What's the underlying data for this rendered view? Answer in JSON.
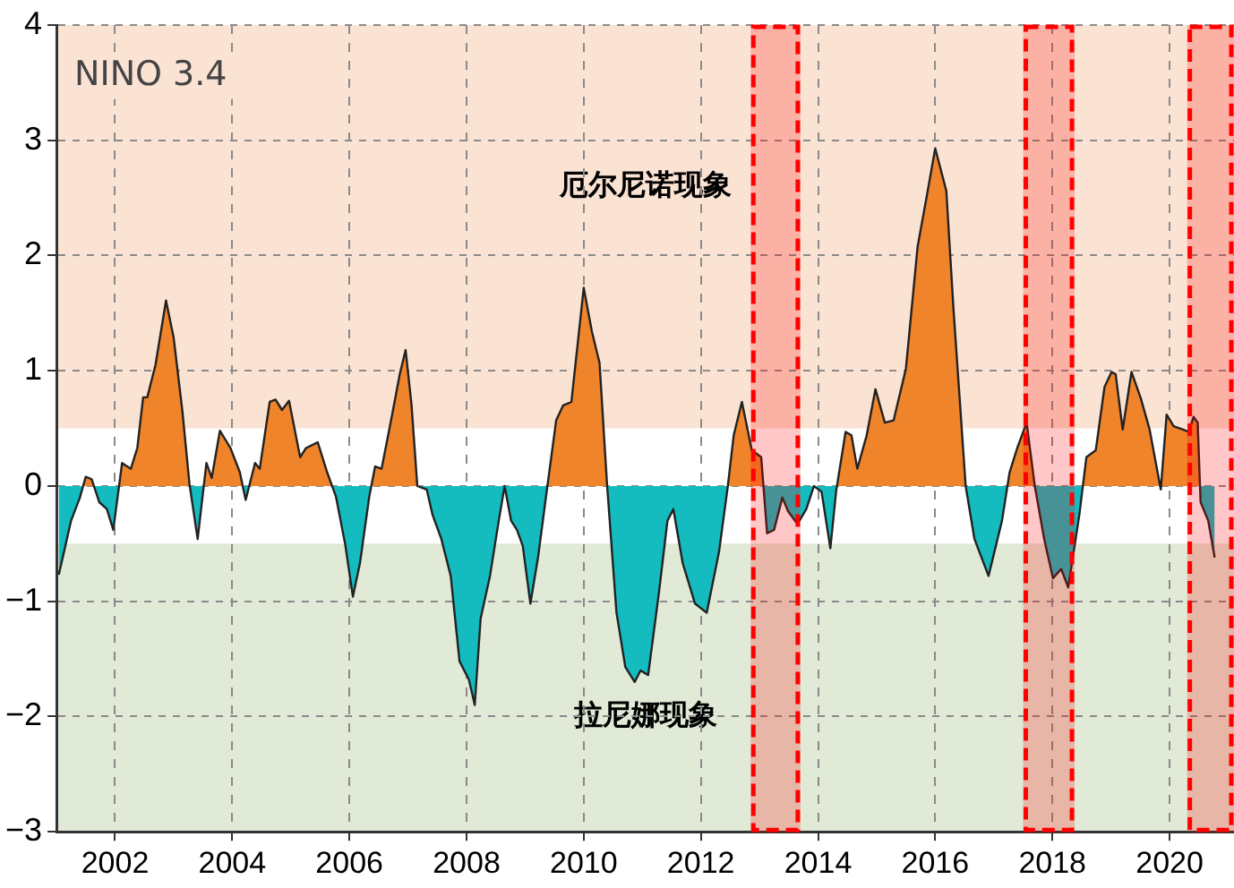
{
  "chart_data": {
    "type": "area",
    "title": "NINO 3.4",
    "x": [
      2001.04,
      2001.25,
      2001.4,
      2001.5,
      2001.6,
      2001.73,
      2001.86,
      2001.97,
      2002.12,
      2002.27,
      2002.38,
      2002.48,
      2002.55,
      2002.69,
      2002.87,
      2003.0,
      2003.15,
      2003.27,
      2003.41,
      2003.56,
      2003.65,
      2003.79,
      2003.97,
      2004.13,
      2004.23,
      2004.39,
      2004.47,
      2004.64,
      2004.74,
      2004.85,
      2004.97,
      2005.16,
      2005.26,
      2005.46,
      2005.62,
      2005.77,
      2005.93,
      2006.06,
      2006.18,
      2006.34,
      2006.44,
      2006.55,
      2006.73,
      2006.86,
      2006.96,
      2007.06,
      2007.16,
      2007.32,
      2007.42,
      2007.57,
      2007.73,
      2007.88,
      2008.04,
      2008.14,
      2008.24,
      2008.4,
      2008.55,
      2008.65,
      2008.76,
      2008.86,
      2008.96,
      2009.09,
      2009.22,
      2009.38,
      2009.53,
      2009.65,
      2009.79,
      2010.0,
      2010.14,
      2010.27,
      2010.4,
      2010.56,
      2010.71,
      2010.87,
      2010.97,
      2011.1,
      2011.28,
      2011.43,
      2011.53,
      2011.69,
      2011.9,
      2012.1,
      2012.31,
      2012.46,
      2012.56,
      2012.7,
      2012.87,
      2013.03,
      2013.13,
      2013.25,
      2013.39,
      2013.49,
      2013.65,
      2013.8,
      2013.93,
      2014.06,
      2014.21,
      2014.31,
      2014.47,
      2014.57,
      2014.67,
      2014.83,
      2014.98,
      2015.14,
      2015.29,
      2015.5,
      2015.7,
      2015.85,
      2016.0,
      2016.19,
      2016.31,
      2016.52,
      2016.67,
      2016.91,
      2017.14,
      2017.27,
      2017.4,
      2017.56,
      2017.7,
      2017.86,
      2018.01,
      2018.15,
      2018.27,
      2018.46,
      2018.58,
      2018.74,
      2018.89,
      2019.01,
      2019.08,
      2019.2,
      2019.35,
      2019.51,
      2019.66,
      2019.85,
      2019.95,
      2020.07,
      2020.23,
      2020.33,
      2020.41,
      2020.48,
      2020.53,
      2020.66,
      2020.77
    ],
    "series": [
      {
        "color": "#f0842a",
        "values": [
          -0.77,
          -0.3,
          -0.1,
          0.08,
          0.06,
          -0.14,
          -0.2,
          -0.38,
          0.2,
          0.15,
          0.33,
          0.77,
          0.77,
          1.05,
          1.61,
          1.29,
          0.65,
          0.02,
          -0.46,
          0.2,
          0.07,
          0.48,
          0.33,
          0.12,
          -0.12,
          0.2,
          0.15,
          0.73,
          0.75,
          0.66,
          0.74,
          0.25,
          0.33,
          0.38,
          0.12,
          -0.09,
          -0.51,
          -0.96,
          -0.67,
          -0.09,
          0.17,
          0.15,
          0.62,
          0.97,
          1.18,
          0.71,
          0,
          -0.03,
          -0.25,
          -0.46,
          -0.78,
          -1.52,
          -1.68,
          -1.9,
          -1.15,
          -0.78,
          -0.3,
          0,
          -0.3,
          -0.38,
          -0.52,
          -1.02,
          -0.62,
          0,
          0.57,
          0.7,
          0.73,
          1.72,
          1.34,
          1.07,
          0,
          -1.1,
          -1.57,
          -1.7,
          -1.6,
          -1.64,
          -0.94,
          -0.3,
          -0.2,
          -0.67,
          -1.02,
          -1.1,
          -0.57,
          0,
          0.44,
          0.73,
          0.31,
          0.25,
          -0.41,
          -0.38,
          -0.1,
          -0.22,
          -0.33,
          -0.2,
          0,
          -0.05,
          -0.54,
          -0.04,
          0.47,
          0.44,
          0.15,
          0.44,
          0.84,
          0.55,
          0.57,
          1.02,
          2.08,
          2.5,
          2.93,
          2.56,
          1.55,
          0,
          -0.46,
          -0.78,
          -0.3,
          0.12,
          0.33,
          0.55,
          0,
          -0.46,
          -0.8,
          -0.72,
          -0.88,
          -0.25,
          0.25,
          0.31,
          0.86,
          0.99,
          0.97,
          0.49,
          0.99,
          0.76,
          0.49,
          -0.03,
          0.62,
          0.52,
          0.49,
          0.47,
          0.6,
          0.55,
          -0.14,
          -0.3,
          -0.62
        ]
      }
    ],
    "xlim": [
      2001,
      2021.1
    ],
    "xticks": [
      2002,
      2004,
      2006,
      2008,
      2010,
      2012,
      2014,
      2016,
      2018,
      2020
    ],
    "ylim": [
      -3,
      4
    ],
    "yticks": [
      -3,
      -2,
      -1,
      0,
      1,
      2,
      3,
      4
    ],
    "grid": true,
    "legend": false,
    "bands": [
      {
        "axis": "y",
        "from": 0.5,
        "to": 4,
        "label": "厄尔尼诺现象",
        "color": "#fbe3d4"
      },
      {
        "axis": "y",
        "from": -3,
        "to": -0.5,
        "label": "拉尼娜现象",
        "color": "#e0ead6"
      },
      {
        "axis": "x",
        "from": 2012.85,
        "to": 2013.7,
        "color": "#ff0000"
      },
      {
        "axis": "x",
        "from": 2017.5,
        "to": 2018.38,
        "color": "#ff0000"
      },
      {
        "axis": "x",
        "from": 2020.3,
        "to": 2021.1,
        "color": "#ff0000"
      }
    ]
  }
}
